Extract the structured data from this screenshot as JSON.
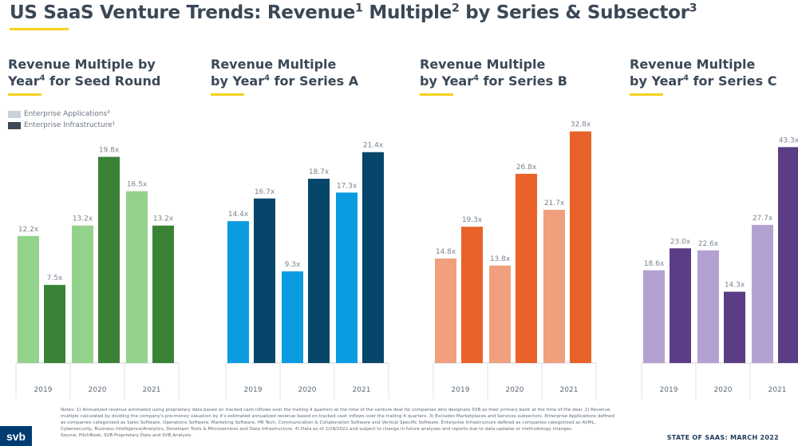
{
  "header": {
    "title_main": "US SaaS Venture Trends: Revenue",
    "title_sup1": "1",
    "title_mid": " Multiple",
    "title_sup2": "2",
    "title_end": " by Series & Subsector",
    "title_sup3": "3"
  },
  "legend": {
    "items": [
      {
        "label": "Enterprise Applications³",
        "color": "#c9d1da"
      },
      {
        "label": "Enterprise Infrastructure¹",
        "color": "#3b4856"
      }
    ]
  },
  "chart_data": [
    {
      "type": "bar",
      "title_line1": "Revenue Multiple by",
      "title_line2_pre": "Year",
      "title_line2_sup": "4",
      "title_line2_post": " for Seed Round",
      "categories": [
        "2019",
        "2020",
        "2021"
      ],
      "series": [
        {
          "name": "Enterprise Applications",
          "values": [
            12.2,
            13.2,
            16.5
          ],
          "labels": [
            "12.2x",
            "13.2x",
            "16.5x"
          ],
          "color": "#93d28a"
        },
        {
          "name": "Enterprise Infrastructure",
          "values": [
            7.5,
            19.8,
            13.2
          ],
          "labels": [
            "7.5x",
            "19.8x",
            "13.2x"
          ],
          "color": "#3a8336"
        }
      ]
    },
    {
      "type": "bar",
      "title_line1": "Revenue Multiple",
      "title_line2_pre": "by Year",
      "title_line2_sup": "4",
      "title_line2_post": " for Series A",
      "categories": [
        "2019",
        "2020",
        "2021"
      ],
      "series": [
        {
          "name": "Enterprise Applications",
          "values": [
            14.4,
            9.3,
            17.3
          ],
          "labels": [
            "14.4x",
            "9.3x",
            "17.3x"
          ],
          "color": "#0b9be0"
        },
        {
          "name": "Enterprise Infrastructure",
          "values": [
            16.7,
            18.7,
            21.4
          ],
          "labels": [
            "16.7x",
            "18.7x",
            "21.4x"
          ],
          "color": "#06466a"
        }
      ]
    },
    {
      "type": "bar",
      "title_line1": "Revenue Multiple",
      "title_line2_pre": "by Year",
      "title_line2_sup": "4",
      "title_line2_post": " for Series B",
      "categories": [
        "2019",
        "2020",
        "2021"
      ],
      "series": [
        {
          "name": "Enterprise Applications",
          "values": [
            14.8,
            13.8,
            21.7
          ],
          "labels": [
            "14.8x",
            "13.8x",
            "21.7x"
          ],
          "color": "#f0a07c"
        },
        {
          "name": "Enterprise Infrastructure",
          "values": [
            19.3,
            26.8,
            32.8
          ],
          "labels": [
            "19.3x",
            "26.8x",
            "32.8x"
          ],
          "color": "#e8622a"
        }
      ]
    },
    {
      "type": "bar",
      "title_line1": "Revenue Multiple",
      "title_line2_pre": "by Year",
      "title_line2_sup": "4",
      "title_line2_post": " for Series C",
      "categories": [
        "2019",
        "2020",
        "2021"
      ],
      "series": [
        {
          "name": "Enterprise Applications",
          "values": [
            18.6,
            22.6,
            27.7
          ],
          "labels": [
            "18.6x",
            "22.6x",
            "27.7x"
          ],
          "color": "#b3a2d1"
        },
        {
          "name": "Enterprise Infrastructure",
          "values": [
            23.0,
            14.3,
            43.3
          ],
          "labels": [
            "23.0x",
            "14.3x",
            "43.3x"
          ],
          "color": "#5b3d86"
        }
      ]
    }
  ],
  "notes": {
    "line1": "Notes: 1) Annualized revenue estimated using proprietary data based on tracked cash inflows over the trailing 4 quarters at the time of the venture deal for companies who designate SVB as their primary bank at the time of the deal. 2) Revenue",
    "line2": "multiple calculated by dividing the company's pre-money valuation by it's estimated annualized revenue based on tracked cash inflows over the trailing 4 quarters. 3) Excludes Marketplaces and Services subsectors. Enterprise Applications defined",
    "line3": "as companies categorized as Sales Software, Operations Software, Marketing Software, HR Tech, Communication & Collaboration Software and Vertical Specific Software. Enterprise Infrastructure defined as companies categorized as AI/ML,",
    "line4": "Cybersecurity, Business Intelligence/Analytics, Developer Tools & Microservices and Data Infrastructure. 4) Data as of 2/28/2022 and subject to change in future analyses and reports due to data updates or methodology changes.",
    "line5": "Source: PitchBook, SVB Proprietary Data and SVB Analysis."
  },
  "footer": {
    "logo_text": "svb",
    "report_label": "STATE OF SAAS: MARCH 2022"
  }
}
